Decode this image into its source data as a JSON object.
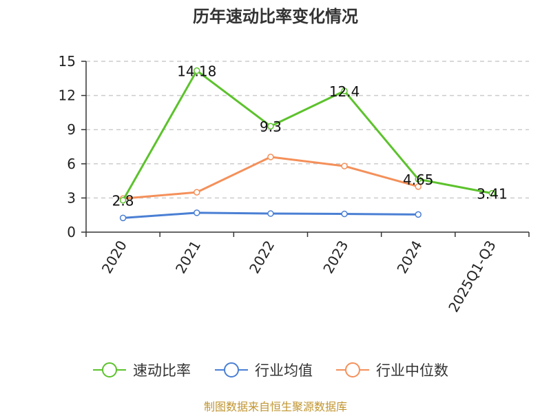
{
  "chart_data": {
    "type": "line",
    "title": "历年速动比率变化情况",
    "categories": [
      "2020",
      "2021",
      "2022",
      "2023",
      "2024",
      "2025Q1-Q3"
    ],
    "ylim": [
      0,
      15
    ],
    "yticks": [
      0,
      3,
      6,
      9,
      12,
      15
    ],
    "grid": true,
    "legend_position": "bottom",
    "series": [
      {
        "name": "速动比率",
        "color": "#5cc22c",
        "values": [
          2.8,
          14.18,
          9.3,
          12.4,
          4.65,
          3.41
        ],
        "labels": [
          "2.8",
          "14.18",
          "9.3",
          "12.4",
          "4.65",
          "3.41"
        ]
      },
      {
        "name": "行业均值",
        "color": "#4a7fd4",
        "values": [
          1.25,
          1.7,
          1.63,
          1.6,
          1.55,
          null
        ]
      },
      {
        "name": "行业中位数",
        "color": "#f4905a",
        "values": [
          2.95,
          3.5,
          6.6,
          5.8,
          4.0,
          null
        ]
      }
    ]
  },
  "source": "制图数据来自恒生聚源数据库"
}
